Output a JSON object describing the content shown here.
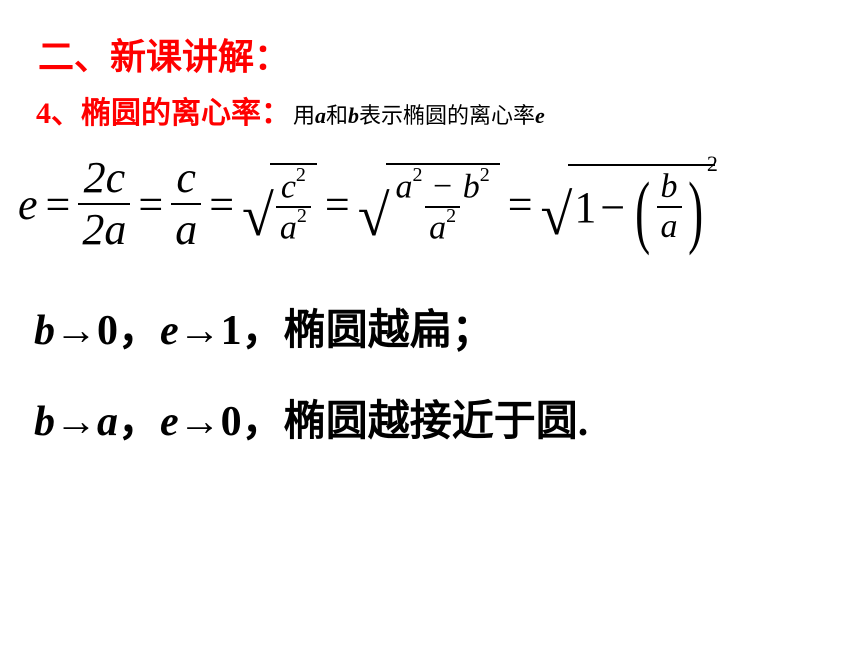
{
  "heading1": "二、新课讲解：",
  "heading2": "4、椭圆的离心率：",
  "subtext_pre": "用",
  "subtext_a": "a",
  "subtext_mid1": "和",
  "subtext_b": "b",
  "subtext_mid2": "表示椭圆的离心率",
  "subtext_e": "e",
  "eq": {
    "e": "e",
    "eq": "=",
    "f1n": "2c",
    "f1d": "2a",
    "f2n": "c",
    "f2d": "a",
    "f3n": "c",
    "f3d": "a",
    "sq": "2",
    "f4n_a": "a",
    "f4n_minus": "−",
    "f4n_b": "b",
    "f4d": "a",
    "one": "1",
    "minus": "−",
    "f5n": "b",
    "f5d": "a"
  },
  "line1": {
    "b": "b",
    "arr": "→",
    "zero": "0",
    "comma": "，",
    "e": "e",
    "one": "1",
    "text": "椭圆越扁；"
  },
  "line2": {
    "b": "b",
    "arr": "→",
    "a": "a",
    "comma": "，",
    "e": "e",
    "zero": "0",
    "text": "椭圆越接近于圆."
  }
}
